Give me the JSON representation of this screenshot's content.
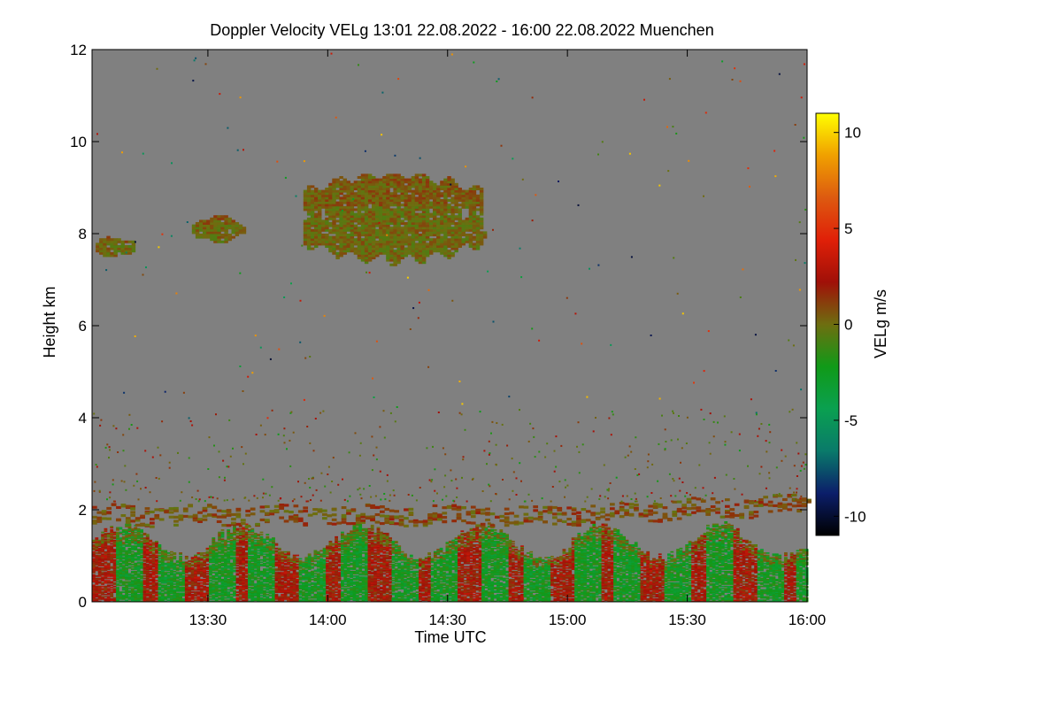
{
  "chart_data": {
    "type": "heatmap",
    "title": "Doppler Velocity VELg   13:01 22.08.2022 - 16:00 22.08.2022 Muenchen",
    "xlabel": "Time UTC",
    "ylabel": "Height km",
    "xlim": [
      "13:01",
      "16:00"
    ],
    "ylim": [
      0,
      12
    ],
    "x_ticks": [
      {
        "label": "13:30",
        "value": 29
      },
      {
        "label": "14:00",
        "value": 59
      },
      {
        "label": "14:30",
        "value": 89
      },
      {
        "label": "15:00",
        "value": 119
      },
      {
        "label": "15:30",
        "value": 149
      },
      {
        "label": "16:00",
        "value": 179
      }
    ],
    "y_ticks": [
      {
        "label": "0",
        "value": 0
      },
      {
        "label": "2",
        "value": 2
      },
      {
        "label": "4",
        "value": 4
      },
      {
        "label": "6",
        "value": 6
      },
      {
        "label": "8",
        "value": 8
      },
      {
        "label": "10",
        "value": 10
      },
      {
        "label": "12",
        "value": 12
      }
    ],
    "colorbar": {
      "label": "VELg m/s",
      "range": [
        -11,
        11
      ],
      "ticks": [
        {
          "label": "10",
          "value": 10
        },
        {
          "label": "5",
          "value": 5
        },
        {
          "label": "0",
          "value": 0
        },
        {
          "label": "-5",
          "value": -5
        },
        {
          "label": "-10",
          "value": -10
        }
      ],
      "colors": [
        "#000000",
        "#0b1e6a",
        "#0a7a6a",
        "#0aa050",
        "#109a18",
        "#6e6e10",
        "#a01008",
        "#e02008",
        "#dd5a10",
        "#f0a000",
        "#ffff00"
      ]
    },
    "background_color": "#808080",
    "features": [
      {
        "name": "boundary layer turbulence",
        "t_start": 0,
        "t_end": 179,
        "h_bottom": 0,
        "h_top": 1.6,
        "velocity": "-3 to 3"
      },
      {
        "name": "aerosol layer",
        "t_start": 0,
        "t_end": 179,
        "h_bottom": 1.7,
        "h_top": 2.3,
        "velocity": "about 1"
      },
      {
        "name": "cirrus cloud",
        "t_start": 52,
        "t_end": 98,
        "h_bottom": 7.3,
        "h_top": 9.3,
        "velocity": "about 0"
      },
      {
        "name": "cirrus cloud",
        "t_start": 25,
        "t_end": 38,
        "h_bottom": 7.8,
        "h_top": 8.4,
        "velocity": "about 0"
      },
      {
        "name": "cirrus cloud",
        "t_start": 0,
        "t_end": 10,
        "h_bottom": 7.5,
        "h_top": 7.9,
        "velocity": "about 0"
      }
    ]
  }
}
